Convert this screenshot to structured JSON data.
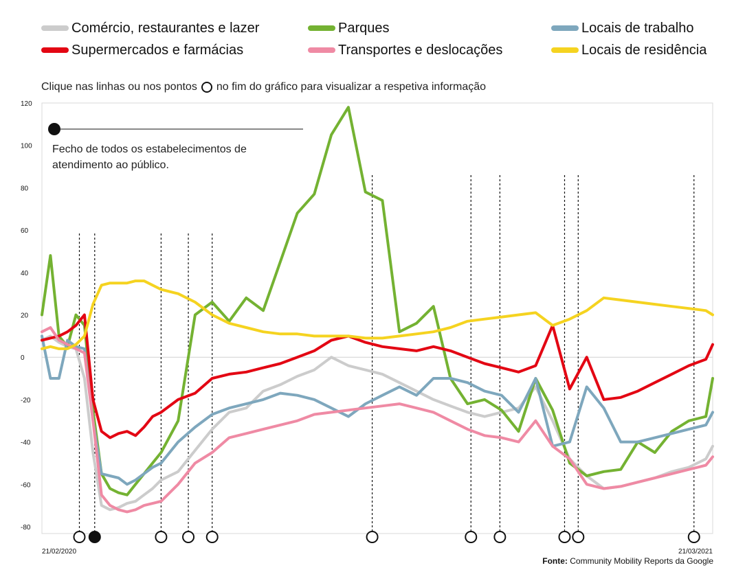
{
  "legend": {
    "items": [
      {
        "label": "Comércio, restaurantes e lazer",
        "color": "#cccccc"
      },
      {
        "label": "Parques",
        "color": "#74b232"
      },
      {
        "label": "Locais de trabalho",
        "color": "#7ea7bd"
      },
      {
        "label": "Supermercados e farmácias",
        "color": "#e30613"
      },
      {
        "label": "Transportes e deslocações",
        "color": "#ef8aa4"
      },
      {
        "label": "Locais de residência",
        "color": "#f5d320"
      }
    ]
  },
  "instruction": {
    "before": "Clique nas linhas ou nos pontos",
    "after": "no fim do gráfico para visualizar a respetiva informação"
  },
  "annotation": {
    "text": "Fecho de todos os estabelecimentos de atendimento ao público.",
    "selected_event_index": 1
  },
  "source": {
    "label": "Fonte:",
    "text": "Community Mobility Reports da Google"
  },
  "chart_data": {
    "type": "line",
    "x_start_label": "21/02/2020",
    "x_end_label": "21/03/2021",
    "ylim": [
      -80,
      120
    ],
    "yticks": [
      120,
      100,
      80,
      60,
      40,
      20,
      0,
      -20,
      -40,
      -60,
      -80
    ],
    "baseline": 0,
    "x": [
      0,
      5,
      10,
      15,
      20,
      25,
      30,
      35,
      40,
      45,
      50,
      55,
      60,
      65,
      70,
      80,
      90,
      100,
      110,
      120,
      130,
      140,
      150,
      160,
      170,
      180,
      190,
      200,
      210,
      220,
      230,
      240,
      250,
      260,
      270,
      280,
      290,
      300,
      310,
      320,
      330,
      340,
      350,
      360,
      370,
      380,
      390,
      394
    ],
    "event_markers_day": [
      22,
      31,
      70,
      86,
      100,
      194,
      252,
      269,
      307,
      315,
      383
    ],
    "series": [
      {
        "name": "Comércio, restaurantes e lazer",
        "color": "#cccccc",
        "values": [
          8,
          10,
          7,
          5,
          4,
          -10,
          -45,
          -70,
          -72,
          -71,
          -69,
          -68,
          -65,
          -62,
          -58,
          -54,
          -44,
          -34,
          -26,
          -24,
          -16,
          -13,
          -9,
          -6,
          0,
          -4,
          -6,
          -8,
          -12,
          -16,
          -20,
          -23,
          -26,
          -28,
          -26,
          -24,
          -14,
          -30,
          -48,
          -56,
          -62,
          -61,
          -59,
          -57,
          -54,
          -52,
          -48,
          -42
        ]
      },
      {
        "name": "Parques",
        "color": "#74b232",
        "values": [
          20,
          48,
          10,
          5,
          20,
          15,
          -25,
          -55,
          -62,
          -64,
          -65,
          -60,
          -55,
          -50,
          -45,
          -30,
          20,
          26,
          17,
          28,
          22,
          45,
          68,
          77,
          105,
          118,
          78,
          74,
          12,
          16,
          24,
          -10,
          -22,
          -20,
          -25,
          -35,
          -10,
          -25,
          -50,
          -56,
          -54,
          -53,
          -40,
          -45,
          -35,
          -30,
          -28,
          -10
        ]
      },
      {
        "name": "Locais de trabalho",
        "color": "#7ea7bd",
        "values": [
          10,
          -10,
          -10,
          8,
          5,
          4,
          -30,
          -55,
          -56,
          -57,
          -60,
          -58,
          -55,
          -52,
          -50,
          -40,
          -33,
          -27,
          -24,
          -22,
          -20,
          -17,
          -18,
          -20,
          -24,
          -28,
          -22,
          -18,
          -14,
          -18,
          -10,
          -10,
          -12,
          -16,
          -18,
          -26,
          -10,
          -42,
          -40,
          -14,
          -24,
          -40,
          -40,
          -38,
          -36,
          -34,
          -32,
          -26
        ]
      },
      {
        "name": "Supermercados e farmácias",
        "color": "#e30613",
        "values": [
          8,
          9,
          10,
          12,
          15,
          20,
          -20,
          -35,
          -38,
          -36,
          -35,
          -37,
          -33,
          -28,
          -26,
          -20,
          -17,
          -10,
          -8,
          -7,
          -5,
          -3,
          0,
          3,
          8,
          10,
          7,
          5,
          4,
          3,
          5,
          3,
          0,
          -3,
          -5,
          -7,
          -4,
          15,
          -15,
          0,
          -20,
          -19,
          -16,
          -12,
          -8,
          -4,
          -1,
          6
        ]
      },
      {
        "name": "Transportes e deslocações",
        "color": "#ef8aa4",
        "values": [
          12,
          14,
          8,
          6,
          4,
          2,
          -30,
          -65,
          -70,
          -72,
          -73,
          -72,
          -70,
          -69,
          -68,
          -60,
          -50,
          -45,
          -38,
          -36,
          -34,
          -32,
          -30,
          -27,
          -26,
          -25,
          -24,
          -23,
          -22,
          -24,
          -26,
          -30,
          -34,
          -37,
          -38,
          -40,
          -30,
          -42,
          -48,
          -60,
          -62,
          -61,
          -59,
          -57,
          -55,
          -53,
          -51,
          -47
        ]
      },
      {
        "name": "Locais de residência",
        "color": "#f5d320",
        "values": [
          4,
          5,
          4,
          4,
          6,
          10,
          25,
          34,
          35,
          35,
          35,
          36,
          36,
          34,
          32,
          30,
          26,
          20,
          16,
          14,
          12,
          11,
          11,
          10,
          10,
          10,
          9,
          9,
          10,
          11,
          12,
          14,
          17,
          18,
          19,
          20,
          21,
          15,
          18,
          22,
          28,
          27,
          26,
          25,
          24,
          23,
          22,
          20
        ]
      }
    ]
  }
}
